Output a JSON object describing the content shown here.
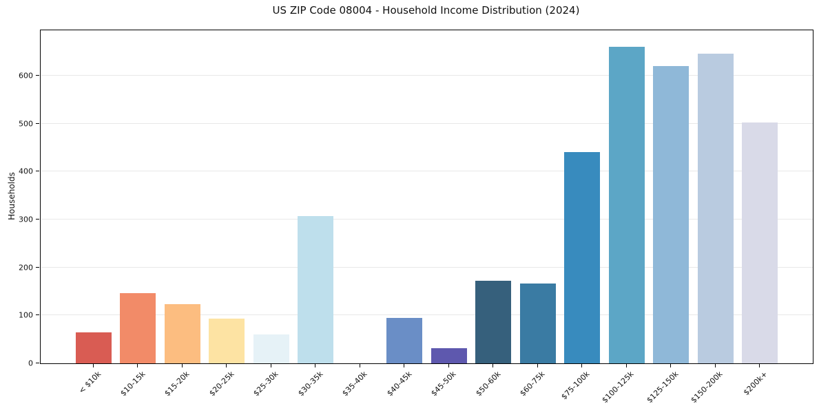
{
  "figure": {
    "background": "#ffffff",
    "spine_color": "#000000",
    "text_color": "#111111"
  },
  "chart_data": {
    "type": "bar",
    "title": "US ZIP Code 08004 - Household Income Distribution (2024)",
    "xlabel": "",
    "ylabel": "Households",
    "categories": [
      "< $10k",
      "$10-15k",
      "$15-20k",
      "$20-25k",
      "$25-30k",
      "$30-35k",
      "$35-40k",
      "$40-45k",
      "$45-50k",
      "$50-60k",
      "$60-75k",
      "$75-100k",
      "$100-125k",
      "$125-150k",
      "$150-200k",
      "$200k+"
    ],
    "values": [
      64,
      147,
      123,
      93,
      61,
      308,
      0,
      95,
      32,
      173,
      166,
      441,
      661,
      620,
      646,
      502
    ],
    "bar_colors": [
      "#d95c53",
      "#f28b68",
      "#fcbd80",
      "#fde3a3",
      "#e6f2f7",
      "#bedfec",
      "#ffffff",
      "#6a8ec6",
      "#5e58ae",
      "#36607c",
      "#3a7ba3",
      "#388bbe",
      "#5ca6c6",
      "#8fb8d8",
      "#b9cbe0",
      "#d9dae8"
    ],
    "ylim": [
      0,
      695
    ],
    "yticks": [
      0,
      100,
      200,
      300,
      400,
      500,
      600
    ],
    "grid": true,
    "gridline_color": "#e8e8e8",
    "legend": "none",
    "xtick_rotation": 45
  }
}
